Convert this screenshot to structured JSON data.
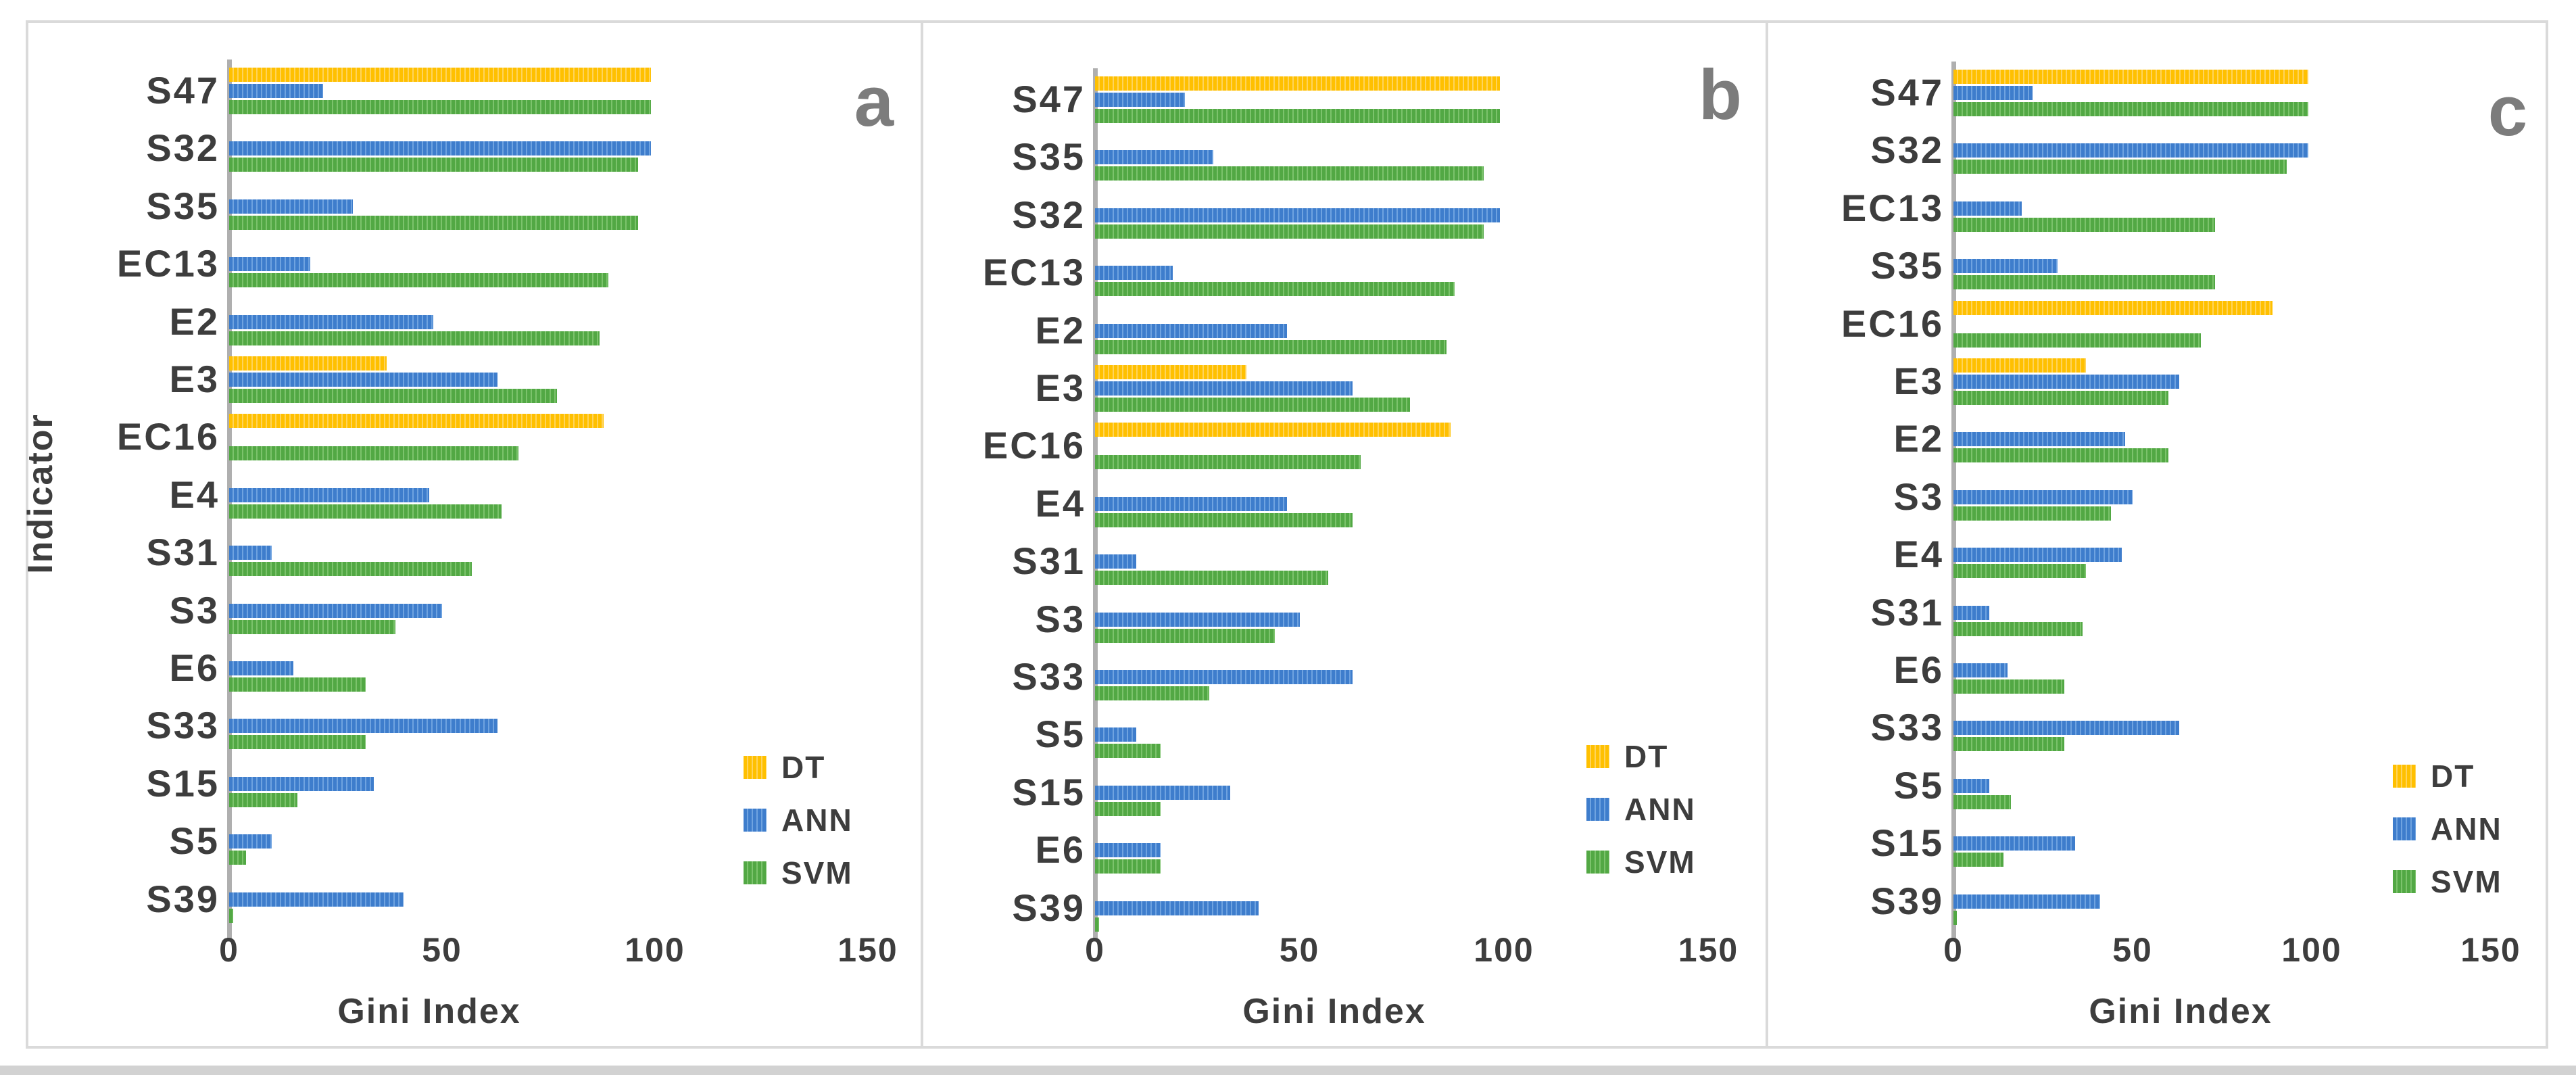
{
  "figure": {
    "xlabel": "Gini Index",
    "ylabel": "Indicator",
    "x_ticks": [
      0,
      50,
      100,
      150
    ],
    "x_max": 150,
    "panel_letters": [
      "a",
      "b",
      "c"
    ]
  },
  "legend": {
    "items": [
      {
        "label": "DT",
        "series": "DT"
      },
      {
        "label": "ANN",
        "series": "ANN"
      },
      {
        "label": "SVM",
        "series": "SVM"
      }
    ]
  },
  "colors": {
    "dt": "#FFC000",
    "ann": "#3E7DCC",
    "svm": "#52A844",
    "axis": "#AFAFAF",
    "frame": "#DADADA",
    "text": "#3D3D3D",
    "panel_letter": "#7C7C7C"
  },
  "chart_data": [
    {
      "type": "bar",
      "orientation": "horizontal",
      "panel_label": "a",
      "xlabel": "Gini Index",
      "ylabel": "Indicator",
      "xlim": [
        0,
        150
      ],
      "x_ticks": [
        0,
        50,
        100,
        150
      ],
      "legend_position": "right-middle",
      "grid": false,
      "categories": [
        "S47",
        "S32",
        "S35",
        "EC13",
        "E2",
        "E3",
        "EC16",
        "E4",
        "S31",
        "S3",
        "E6",
        "S33",
        "S15",
        "S5",
        "S39"
      ],
      "series": [
        {
          "name": "DT",
          "values": [
            99,
            null,
            null,
            null,
            null,
            37,
            88,
            null,
            null,
            null,
            null,
            null,
            null,
            null,
            null
          ]
        },
        {
          "name": "ANN",
          "values": [
            22,
            99,
            29,
            19,
            48,
            63,
            null,
            47,
            10,
            50,
            15,
            63,
            34,
            10,
            41
          ]
        },
        {
          "name": "SVM",
          "values": [
            99,
            96,
            96,
            89,
            87,
            77,
            68,
            64,
            57,
            39,
            32,
            32,
            16,
            4,
            1
          ]
        }
      ]
    },
    {
      "type": "bar",
      "orientation": "horizontal",
      "panel_label": "b",
      "xlabel": "Gini Index",
      "ylabel": "",
      "xlim": [
        0,
        150
      ],
      "x_ticks": [
        0,
        50,
        100,
        150
      ],
      "legend_position": "right-middle",
      "grid": false,
      "categories": [
        "S47",
        "S35",
        "S32",
        "EC13",
        "E2",
        "E3",
        "EC16",
        "E4",
        "S31",
        "S3",
        "S33",
        "S5",
        "S15",
        "E6",
        "S39"
      ],
      "series": [
        {
          "name": "DT",
          "values": [
            99,
            null,
            null,
            null,
            null,
            37,
            87,
            null,
            null,
            null,
            null,
            null,
            null,
            null,
            null
          ]
        },
        {
          "name": "ANN",
          "values": [
            22,
            29,
            99,
            19,
            47,
            63,
            null,
            47,
            10,
            50,
            63,
            10,
            33,
            16,
            40
          ]
        },
        {
          "name": "SVM",
          "values": [
            99,
            95,
            95,
            88,
            86,
            77,
            65,
            63,
            57,
            44,
            28,
            16,
            16,
            16,
            1
          ]
        }
      ]
    },
    {
      "type": "bar",
      "orientation": "horizontal",
      "panel_label": "c",
      "xlabel": "Gini Index",
      "ylabel": "",
      "xlim": [
        0,
        150
      ],
      "x_ticks": [
        0,
        50,
        100,
        150
      ],
      "legend_position": "right-middle",
      "grid": false,
      "categories": [
        "S47",
        "S32",
        "EC13",
        "S35",
        "EC16",
        "E3",
        "E2",
        "S3",
        "E4",
        "S31",
        "E6",
        "S33",
        "S5",
        "S15",
        "S39"
      ],
      "series": [
        {
          "name": "DT",
          "values": [
            99,
            null,
            null,
            null,
            89,
            37,
            null,
            null,
            null,
            null,
            null,
            null,
            null,
            null,
            null
          ]
        },
        {
          "name": "ANN",
          "values": [
            22,
            99,
            19,
            29,
            null,
            63,
            48,
            50,
            47,
            10,
            15,
            63,
            10,
            34,
            41
          ]
        },
        {
          "name": "SVM",
          "values": [
            99,
            93,
            73,
            73,
            69,
            60,
            60,
            44,
            37,
            36,
            31,
            31,
            16,
            14,
            1
          ]
        }
      ]
    }
  ]
}
